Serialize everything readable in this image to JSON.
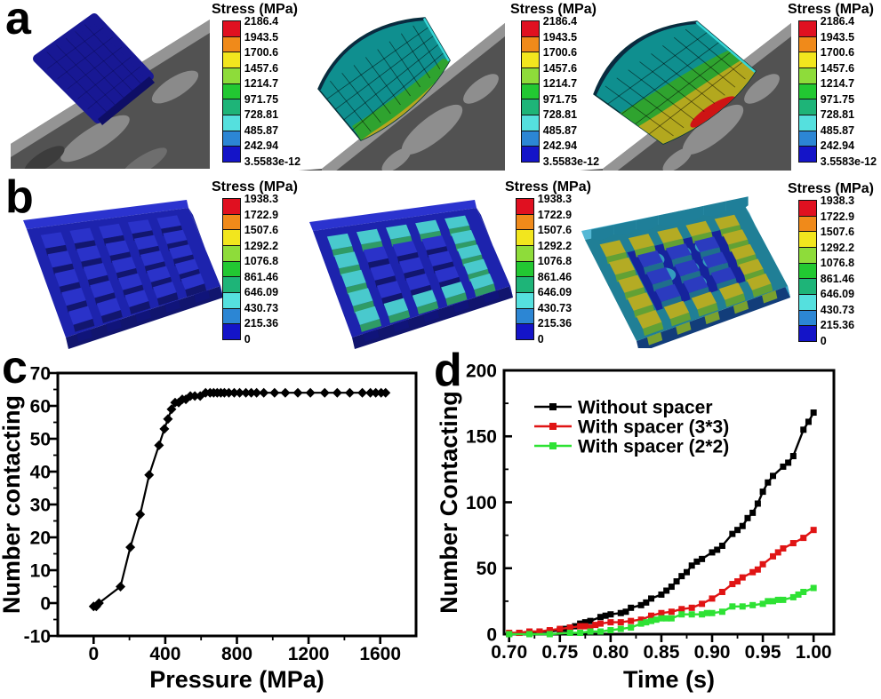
{
  "figure": {
    "background": "#ffffff"
  },
  "panels": {
    "a": {
      "label": "a"
    },
    "b": {
      "label": "b"
    },
    "c": {
      "label": "c"
    },
    "d": {
      "label": "d"
    }
  },
  "colorbar_colors": [
    "#e01020",
    "#f08a1a",
    "#f2e61e",
    "#8edc3a",
    "#22c832",
    "#1eb478",
    "#55e0de",
    "#2c86d4",
    "#1414c8"
  ],
  "colorbars": {
    "a": {
      "title": "Stress (MPa)",
      "values": [
        "2186.4",
        "1943.5",
        "1700.6",
        "1457.6",
        "1214.7",
        "971.75",
        "728.81",
        "485.87",
        "242.94",
        "3.5583e-12"
      ]
    },
    "b": {
      "title": "Stress (MPa)",
      "values": [
        "1938.3",
        "1722.9",
        "1507.6",
        "1292.2",
        "1076.8",
        "861.46",
        "646.09",
        "430.73",
        "215.36",
        "0"
      ]
    }
  },
  "chart_data": [
    {
      "id": "c",
      "type": "line",
      "title": "",
      "xlabel": "Pressure (MPa)",
      "ylabel": "Number contacting",
      "xlim": [
        -200,
        1800
      ],
      "ylim": [
        -10,
        70
      ],
      "xticks": [
        0,
        400,
        800,
        1200,
        1600
      ],
      "yticks": [
        -10,
        0,
        10,
        20,
        30,
        40,
        50,
        60,
        70
      ],
      "x_minor_step": 200,
      "y_minor_step": 5,
      "grid": false,
      "legend": false,
      "series": [
        {
          "name": "",
          "color": "#000000",
          "marker": "diamond",
          "x": [
            0,
            15,
            30,
            150,
            205,
            260,
            310,
            365,
            395,
            415,
            435,
            455,
            475,
            495,
            515,
            540,
            565,
            595,
            625,
            650,
            670,
            690,
            710,
            730,
            755,
            785,
            815,
            850,
            880,
            910,
            950,
            1010,
            1070,
            1140,
            1210,
            1290,
            1360,
            1430,
            1500,
            1545,
            1575,
            1605,
            1630
          ],
          "y": [
            -1,
            -1,
            0,
            5,
            17,
            27,
            39,
            48,
            53,
            56,
            59,
            61,
            61,
            62,
            62,
            63,
            63,
            63,
            64,
            64,
            64,
            64,
            64,
            64,
            64,
            64,
            64,
            64,
            64,
            64,
            64,
            64,
            64,
            64,
            64,
            64,
            64,
            64,
            64,
            64,
            64,
            64,
            64
          ]
        }
      ]
    },
    {
      "id": "d",
      "type": "line",
      "title": "",
      "xlabel": "Time (s)",
      "ylabel": "Number Contacting",
      "xlim": [
        0.695,
        1.02
      ],
      "ylim": [
        0,
        200
      ],
      "xticks": [
        0.7,
        0.75,
        0.8,
        0.85,
        0.9,
        0.95,
        1.0
      ],
      "xtick_labels": [
        "0.70",
        "0.75",
        "0.80",
        "0.85",
        "0.90",
        "0.95",
        "1.00"
      ],
      "yticks": [
        0,
        50,
        100,
        150,
        200
      ],
      "x_minor_step": 0.025,
      "y_minor_step": 25,
      "grid": false,
      "legend": true,
      "legend_position": "upper-left-inside",
      "series": [
        {
          "name": "Without spacer",
          "color": "#000000",
          "marker": "square",
          "x": [
            0.7,
            0.71,
            0.72,
            0.73,
            0.74,
            0.75,
            0.755,
            0.76,
            0.765,
            0.77,
            0.775,
            0.78,
            0.79,
            0.795,
            0.8,
            0.81,
            0.815,
            0.82,
            0.83,
            0.835,
            0.84,
            0.85,
            0.855,
            0.86,
            0.865,
            0.87,
            0.875,
            0.88,
            0.885,
            0.89,
            0.9,
            0.905,
            0.91,
            0.92,
            0.925,
            0.93,
            0.935,
            0.94,
            0.945,
            0.95,
            0.955,
            0.96,
            0.97,
            0.975,
            0.98,
            0.99,
            0.995,
            1.0
          ],
          "y": [
            0,
            1,
            1,
            2,
            2,
            3,
            4,
            5,
            6,
            8,
            9,
            10,
            13,
            14,
            15,
            16,
            17,
            20,
            22,
            24,
            27,
            30,
            33,
            36,
            40,
            44,
            47,
            52,
            55,
            57,
            62,
            64,
            67,
            76,
            79,
            82,
            88,
            92,
            99,
            108,
            115,
            120,
            127,
            130,
            135,
            155,
            161,
            168
          ]
        },
        {
          "name": "With spacer (3*3)",
          "color": "#e01414",
          "marker": "square",
          "x": [
            0.7,
            0.71,
            0.72,
            0.73,
            0.74,
            0.75,
            0.76,
            0.77,
            0.775,
            0.78,
            0.785,
            0.79,
            0.8,
            0.81,
            0.82,
            0.83,
            0.84,
            0.85,
            0.86,
            0.87,
            0.88,
            0.89,
            0.9,
            0.91,
            0.92,
            0.925,
            0.93,
            0.94,
            0.945,
            0.95,
            0.96,
            0.965,
            0.97,
            0.98,
            0.99,
            1.0
          ],
          "y": [
            1,
            1,
            2,
            2,
            3,
            4,
            5,
            6,
            6,
            5,
            7,
            8,
            9,
            9,
            10,
            11,
            14,
            16,
            17,
            19,
            20,
            23,
            27,
            32,
            38,
            40,
            43,
            47,
            49,
            53,
            59,
            62,
            65,
            69,
            73,
            79
          ]
        },
        {
          "name": "With spacer (2*2)",
          "color": "#2ee234",
          "marker": "square",
          "x": [
            0.7,
            0.72,
            0.74,
            0.76,
            0.77,
            0.78,
            0.79,
            0.8,
            0.81,
            0.82,
            0.83,
            0.835,
            0.84,
            0.845,
            0.85,
            0.855,
            0.86,
            0.87,
            0.88,
            0.89,
            0.895,
            0.9,
            0.91,
            0.92,
            0.93,
            0.94,
            0.95,
            0.955,
            0.96,
            0.965,
            0.97,
            0.98,
            0.985,
            0.99,
            1.0
          ],
          "y": [
            0,
            0,
            0,
            1,
            1,
            2,
            2,
            3,
            4,
            5,
            8,
            9,
            10,
            11,
            12,
            12,
            12,
            15,
            15,
            15,
            16,
            16,
            17,
            21,
            21,
            22,
            23,
            25,
            25,
            26,
            26,
            28,
            30,
            32,
            35
          ]
        }
      ]
    }
  ]
}
